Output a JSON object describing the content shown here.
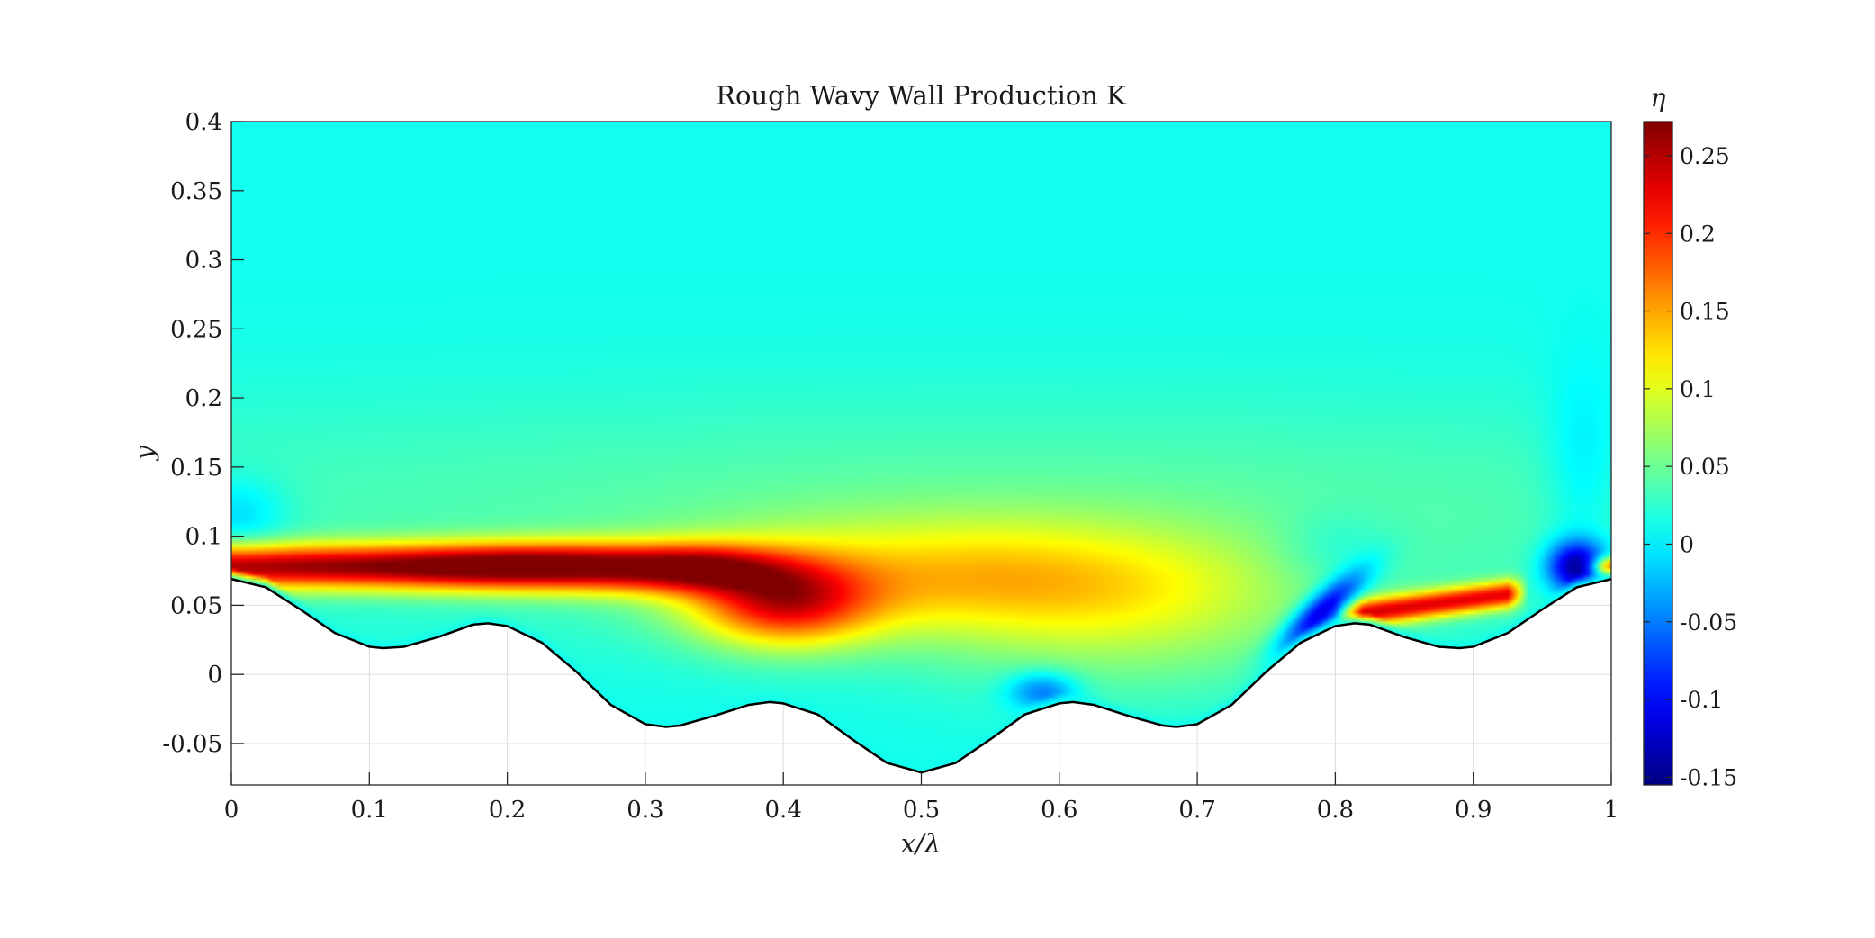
{
  "chart_data": {
    "type": "heatmap",
    "title": "Rough Wavy Wall Production K",
    "xlabel": "x/λ",
    "ylabel": "y",
    "xlim": [
      0,
      1
    ],
    "ylim": [
      -0.08,
      0.4
    ],
    "x_ticks": [
      0,
      0.1,
      0.2,
      0.3,
      0.4,
      0.5,
      0.6,
      0.7,
      0.8,
      0.9,
      1
    ],
    "x_tick_labels": [
      "0",
      "0.1",
      "0.2",
      "0.3",
      "0.4",
      "0.5",
      "0.6",
      "0.7",
      "0.8",
      "0.9",
      "1"
    ],
    "y_ticks": [
      -0.05,
      0,
      0.05,
      0.1,
      0.15,
      0.2,
      0.25,
      0.3,
      0.35,
      0.4
    ],
    "y_tick_labels": [
      "-0.05",
      "0",
      "0.05",
      "0.1",
      "0.15",
      "0.2",
      "0.25",
      "0.3",
      "0.35",
      "0.4"
    ],
    "grid": true,
    "colormap": "jet",
    "colorbar": {
      "label": "η",
      "clim": [
        -0.155,
        0.272
      ],
      "ticks": [
        -0.15,
        -0.1,
        -0.05,
        0,
        0.05,
        0.1,
        0.15,
        0.2,
        0.25
      ],
      "tick_labels": [
        "-0.15",
        "-0.1",
        "-0.05",
        "0",
        "0.05",
        "0.1",
        "0.15",
        "0.2",
        "0.25"
      ]
    },
    "wall_profile": [
      [
        0,
        0.069
      ],
      [
        0.025,
        0.063
      ],
      [
        0.05,
        0.047
      ],
      [
        0.075,
        0.03
      ],
      [
        0.1,
        0.02
      ],
      [
        0.11,
        0.019
      ],
      [
        0.125,
        0.02
      ],
      [
        0.15,
        0.027
      ],
      [
        0.175,
        0.036
      ],
      [
        0.186,
        0.037
      ],
      [
        0.2,
        0.035
      ],
      [
        0.225,
        0.023
      ],
      [
        0.25,
        0.002
      ],
      [
        0.275,
        -0.022
      ],
      [
        0.3,
        -0.036
      ],
      [
        0.315,
        -0.038
      ],
      [
        0.325,
        -0.037
      ],
      [
        0.35,
        -0.03
      ],
      [
        0.375,
        -0.022
      ],
      [
        0.39,
        -0.02
      ],
      [
        0.4,
        -0.021
      ],
      [
        0.425,
        -0.029
      ],
      [
        0.45,
        -0.047
      ],
      [
        0.475,
        -0.064
      ],
      [
        0.5,
        -0.071
      ],
      [
        0.525,
        -0.064
      ],
      [
        0.55,
        -0.047
      ],
      [
        0.575,
        -0.029
      ],
      [
        0.6,
        -0.021
      ],
      [
        0.61,
        -0.02
      ],
      [
        0.625,
        -0.022
      ],
      [
        0.65,
        -0.03
      ],
      [
        0.675,
        -0.037
      ],
      [
        0.685,
        -0.038
      ],
      [
        0.7,
        -0.036
      ],
      [
        0.725,
        -0.022
      ],
      [
        0.75,
        0.002
      ],
      [
        0.775,
        0.023
      ],
      [
        0.8,
        0.035
      ],
      [
        0.814,
        0.037
      ],
      [
        0.825,
        0.036
      ],
      [
        0.85,
        0.027
      ],
      [
        0.875,
        0.02
      ],
      [
        0.89,
        0.019
      ],
      [
        0.9,
        0.02
      ],
      [
        0.925,
        0.03
      ],
      [
        0.95,
        0.047
      ],
      [
        0.975,
        0.063
      ],
      [
        1,
        0.069
      ]
    ],
    "field_features": [
      {
        "kind": "production-streak",
        "x_range": [
          0,
          0.3
        ],
        "y_center": 0.078,
        "peak_x": 0.2,
        "value": 0.27
      },
      {
        "kind": "production-peak",
        "x": 0.4,
        "y": 0.05,
        "value": 0.2
      },
      {
        "kind": "production-region",
        "x_range": [
          0.3,
          0.75
        ],
        "y_center": 0.07,
        "value": 0.11
      },
      {
        "kind": "production-streak",
        "x_range": [
          0.81,
          0.93
        ],
        "y_center": 0.052,
        "peak_x": 0.9,
        "value": 0.21
      },
      {
        "kind": "negative-blob",
        "x": 0.79,
        "y": 0.042,
        "value": -0.13
      },
      {
        "kind": "negative-blob",
        "x": 0.975,
        "y": 0.076,
        "value": -0.15
      },
      {
        "kind": "negative-blob",
        "x": 0.59,
        "y": -0.013,
        "value": -0.07
      },
      {
        "kind": "negative-blob",
        "x": 0.01,
        "y": 0.115,
        "value": -0.03
      }
    ]
  }
}
